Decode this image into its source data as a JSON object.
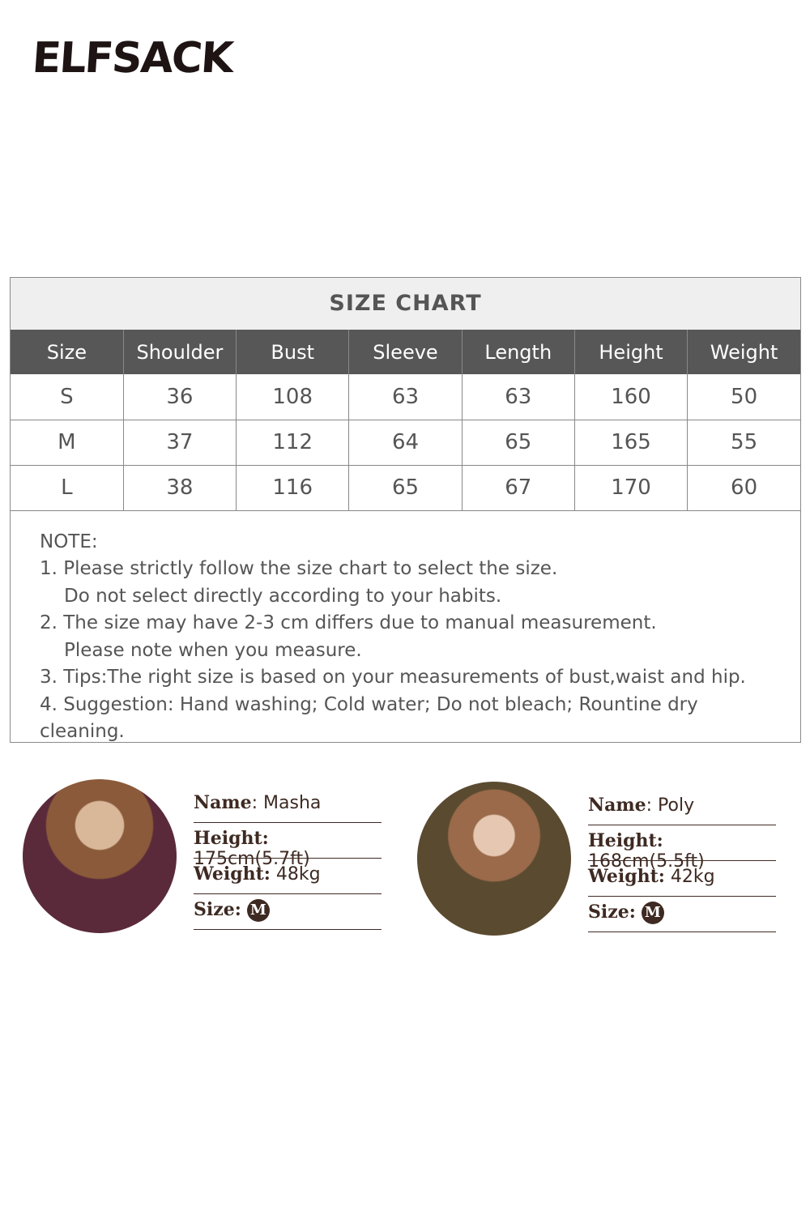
{
  "brand": {
    "logo_text": "ELFSACK"
  },
  "size_chart": {
    "title": "SIZE CHART",
    "headers": [
      "Size",
      "Shoulder",
      "Bust",
      "Sleeve",
      "Length",
      "Height",
      "Weight"
    ],
    "rows": [
      [
        "S",
        "36",
        "108",
        "63",
        "63",
        "160",
        "50"
      ],
      [
        "M",
        "37",
        "112",
        "64",
        "65",
        "165",
        "55"
      ],
      [
        "L",
        "38",
        "116",
        "65",
        "67",
        "170",
        "60"
      ]
    ]
  },
  "notes": {
    "heading": "NOTE:",
    "lines": [
      "1. Please strictly follow the size chart to select the size.",
      "Do not select directly according to your habits.",
      "2. The size may have 2-3 cm differs due to manual measurement.",
      "Please note when you measure.",
      "3. Tips:The right size is based on your measurements of bust,waist and hip.",
      "4. Suggestion: Hand washing; Cold water; Do not bleach; Rountine dry cleaning."
    ]
  },
  "models": [
    {
      "name_label": "Name",
      "name": ": Masha",
      "height_label": "Height:",
      "height": " 175cm(5.7ft)",
      "weight_label": "Weight:",
      "weight": " 48kg",
      "size_label": "Size:",
      "size": "M"
    },
    {
      "name_label": "Name",
      "name": ": Poly",
      "height_label": "Height:",
      "height": " 168cm(5.5ft)",
      "weight_label": "Weight:",
      "weight": " 42kg",
      "size_label": "Size:",
      "size": "M"
    }
  ]
}
